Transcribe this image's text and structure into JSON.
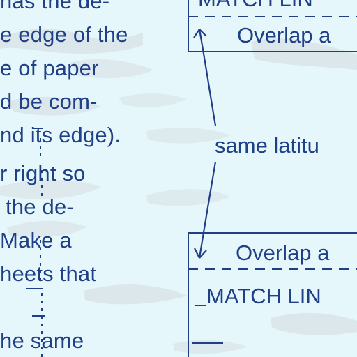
{
  "paragraph": {
    "lines": [
      "has the de-",
      "e edge of the",
      "e of paper",
      "d be com-",
      "nd its edge).",
      "r right so",
      "the de-",
      "Make a",
      "heets that",
      "he same"
    ]
  },
  "diagram": {
    "match_line_top": "MATCH LIN",
    "overlap_top": "Overlap a",
    "latitude_label": "same latitu",
    "overlap_bottom": "Overlap a",
    "match_line_bottom": "MATCH LIN"
  },
  "colors": {
    "paper": "#e6f7fb",
    "ink": "#1f3f86",
    "stain": "#d8e2e6"
  }
}
